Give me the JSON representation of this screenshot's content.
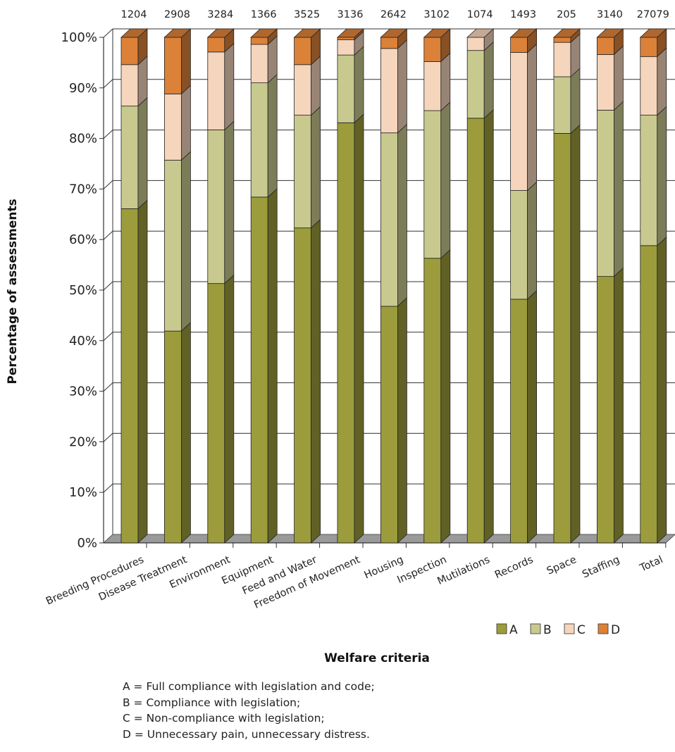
{
  "chart_data": {
    "type": "bar",
    "stacked": true,
    "style": "3d",
    "categories": [
      "Breeding Procedures",
      "Disease Treatment",
      "Environment",
      "Equipment",
      "Feed and Water",
      "Freedom of Movement",
      "Housing",
      "Inspection",
      "Mutilations",
      "Records",
      "Space",
      "Staffing",
      "Total"
    ],
    "counts": [
      "1204",
      "2908",
      "3284",
      "1366",
      "3525",
      "3136",
      "2642",
      "3102",
      "1074",
      "1493",
      "205",
      "3140",
      "27079"
    ],
    "series": [
      {
        "name": "A",
        "color": "#9c9c3c",
        "values": [
          66.1,
          41.9,
          51.3,
          68.4,
          62.3,
          83.1,
          46.8,
          56.3,
          84.0,
          48.2,
          81.0,
          52.7,
          58.8
        ]
      },
      {
        "name": "B",
        "color": "#c8c98e",
        "values": [
          20.3,
          33.8,
          30.4,
          22.6,
          22.3,
          13.4,
          34.3,
          29.2,
          13.4,
          21.5,
          11.2,
          32.9,
          25.8
        ]
      },
      {
        "name": "C",
        "color": "#f5d5bc",
        "values": [
          8.2,
          13.1,
          15.4,
          7.6,
          10.0,
          3.0,
          16.7,
          9.7,
          2.6,
          27.3,
          6.8,
          11.0,
          11.6
        ]
      },
      {
        "name": "D",
        "color": "#dc8138",
        "values": [
          5.4,
          11.2,
          2.9,
          1.4,
          5.4,
          0.5,
          2.2,
          4.8,
          0.0,
          3.0,
          1.0,
          3.4,
          3.8
        ]
      }
    ],
    "yticks": [
      "0%",
      "10%",
      "20%",
      "30%",
      "40%",
      "50%",
      "60%",
      "70%",
      "80%",
      "90%",
      "100%"
    ],
    "ylim": [
      0,
      100
    ],
    "xlabel": "Welfare criteria",
    "ylabel": "Percentage of assessments",
    "grid": true,
    "legend_position": "bottom-right"
  },
  "notes": [
    "A = Full compliance with legislation and code;",
    "B = Compliance with legislation;",
    "C = Non-compliance with legislation;",
    "D = Unnecessary pain, unnecessary distress."
  ]
}
